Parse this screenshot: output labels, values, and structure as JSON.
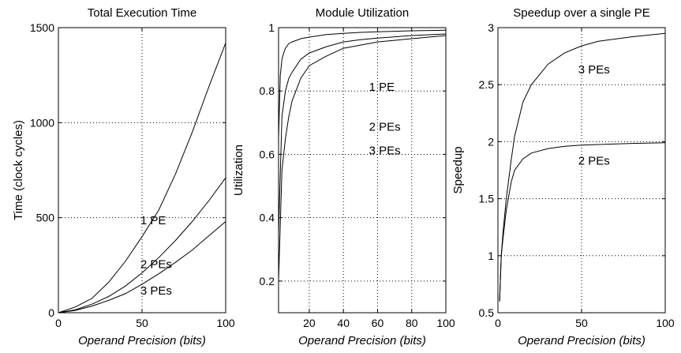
{
  "chart_data": [
    {
      "type": "line",
      "title": "Total Execution Time",
      "xlabel": "Operand Precision (bits)",
      "ylabel": "Time (clock cycles)",
      "xlim": [
        0,
        100
      ],
      "ylim": [
        0,
        1500
      ],
      "xticks": [
        0,
        50,
        100
      ],
      "yticks": [
        0,
        500,
        1000,
        1500
      ],
      "grid": true,
      "series": [
        {
          "name": "1 PE",
          "x": [
            0,
            10,
            20,
            30,
            40,
            50,
            60,
            70,
            80,
            90,
            100
          ],
          "y": [
            0,
            30,
            75,
            160,
            270,
            400,
            540,
            730,
            950,
            1190,
            1420
          ]
        },
        {
          "name": "2 PEs",
          "x": [
            0,
            10,
            20,
            30,
            40,
            50,
            60,
            70,
            80,
            90,
            100
          ],
          "y": [
            0,
            15,
            45,
            85,
            140,
            210,
            290,
            380,
            480,
            590,
            710
          ]
        },
        {
          "name": "3 PEs",
          "x": [
            0,
            10,
            20,
            30,
            40,
            50,
            60,
            70,
            80,
            90,
            100
          ],
          "y": [
            0,
            12,
            35,
            65,
            100,
            150,
            205,
            265,
            330,
            405,
            480
          ]
        }
      ],
      "annotations": [
        {
          "text": "1 PE",
          "x": 49,
          "y": 465
        },
        {
          "text": "2 PEs",
          "x": 49,
          "y": 235
        },
        {
          "text": "3 PEs",
          "x": 49,
          "y": 95
        }
      ]
    },
    {
      "type": "line",
      "title": "Module Utilization",
      "xlabel": "Operand Precision (bits)",
      "ylabel": "Utilization",
      "xlim": [
        2,
        100
      ],
      "ylim": [
        0.1,
        1.0
      ],
      "xticks": [
        20,
        40,
        60,
        80,
        100
      ],
      "yticks": [
        0.2,
        0.4,
        0.6,
        0.8,
        1.0
      ],
      "ytick_labels": [
        "0.2",
        "0.4",
        "0.6",
        "0.8",
        "1"
      ],
      "grid": true,
      "series": [
        {
          "name": "1 PE",
          "x": [
            2,
            3,
            4,
            5,
            6,
            8,
            10,
            15,
            20,
            30,
            40,
            50,
            60,
            80,
            100
          ],
          "y": [
            0.65,
            0.85,
            0.9,
            0.92,
            0.935,
            0.95,
            0.955,
            0.965,
            0.97,
            0.978,
            0.982,
            0.985,
            0.987,
            0.99,
            0.992
          ]
        },
        {
          "name": "2 PEs",
          "x": [
            2,
            4,
            6,
            8,
            10,
            15,
            20,
            30,
            40,
            50,
            60,
            80,
            100
          ],
          "y": [
            0.35,
            0.72,
            0.8,
            0.84,
            0.86,
            0.9,
            0.92,
            0.94,
            0.955,
            0.962,
            0.967,
            0.975,
            0.98
          ]
        },
        {
          "name": "3 PEs",
          "x": [
            2,
            4,
            6,
            8,
            10,
            15,
            20,
            30,
            40,
            50,
            60,
            80,
            100
          ],
          "y": [
            0.2,
            0.55,
            0.65,
            0.72,
            0.77,
            0.84,
            0.88,
            0.91,
            0.935,
            0.945,
            0.955,
            0.965,
            0.975
          ]
        }
      ],
      "annotations": [
        {
          "text": "1 PE",
          "x": 55,
          "y": 0.8
        },
        {
          "text": "2 PEs",
          "x": 55,
          "y": 0.675
        },
        {
          "text": "3 PEs",
          "x": 55,
          "y": 0.6
        }
      ]
    },
    {
      "type": "line",
      "title": "Speedup over a single PE",
      "xlabel": "Operand Precision (bits)",
      "ylabel": "Speedup",
      "xlim": [
        0,
        100
      ],
      "ylim": [
        0.5,
        3.0
      ],
      "xticks": [
        0,
        50,
        100
      ],
      "yticks": [
        0.5,
        1.0,
        1.5,
        2.0,
        2.5,
        3.0
      ],
      "ytick_labels": [
        "0.5",
        "1",
        "1.5",
        "2",
        "2.5",
        "3"
      ],
      "grid": true,
      "series": [
        {
          "name": "3 PEs",
          "x": [
            1,
            2,
            3,
            5,
            8,
            10,
            15,
            20,
            30,
            40,
            50,
            60,
            80,
            100
          ],
          "y": [
            0.6,
            1.0,
            1.2,
            1.5,
            1.85,
            2.05,
            2.35,
            2.5,
            2.68,
            2.78,
            2.84,
            2.88,
            2.92,
            2.95
          ]
        },
        {
          "name": "2 PEs",
          "x": [
            1,
            2,
            3,
            5,
            8,
            10,
            15,
            20,
            30,
            40,
            50,
            60,
            80,
            100
          ],
          "y": [
            0.6,
            1.0,
            1.15,
            1.4,
            1.65,
            1.75,
            1.85,
            1.9,
            1.94,
            1.96,
            1.97,
            1.975,
            1.985,
            1.99
          ]
        }
      ],
      "annotations": [
        {
          "text": "3 PEs",
          "x": 48,
          "y": 2.6
        },
        {
          "text": "2 PEs",
          "x": 48,
          "y": 1.8
        }
      ]
    }
  ]
}
